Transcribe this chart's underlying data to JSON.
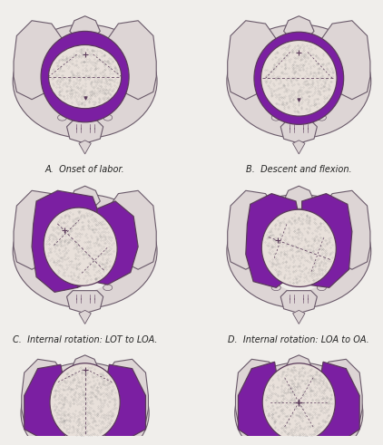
{
  "bg_color": "#f0eeeb",
  "outline_color": "#5a3a5a",
  "purple_color": "#7b1fa2",
  "head_fill": "#e8e0da",
  "pelvis_fill": "#ddd5d5",
  "pelvis_edge": "#6a5a6a",
  "text_color": "#222222",
  "labels": [
    "A.  Onset of labor.",
    "B.  Descent and flexion.",
    "C.  Internal rotation: LOT to LOA.",
    "D.  Internal rotation: LOA to OA."
  ],
  "label_fontsize": 7.0
}
